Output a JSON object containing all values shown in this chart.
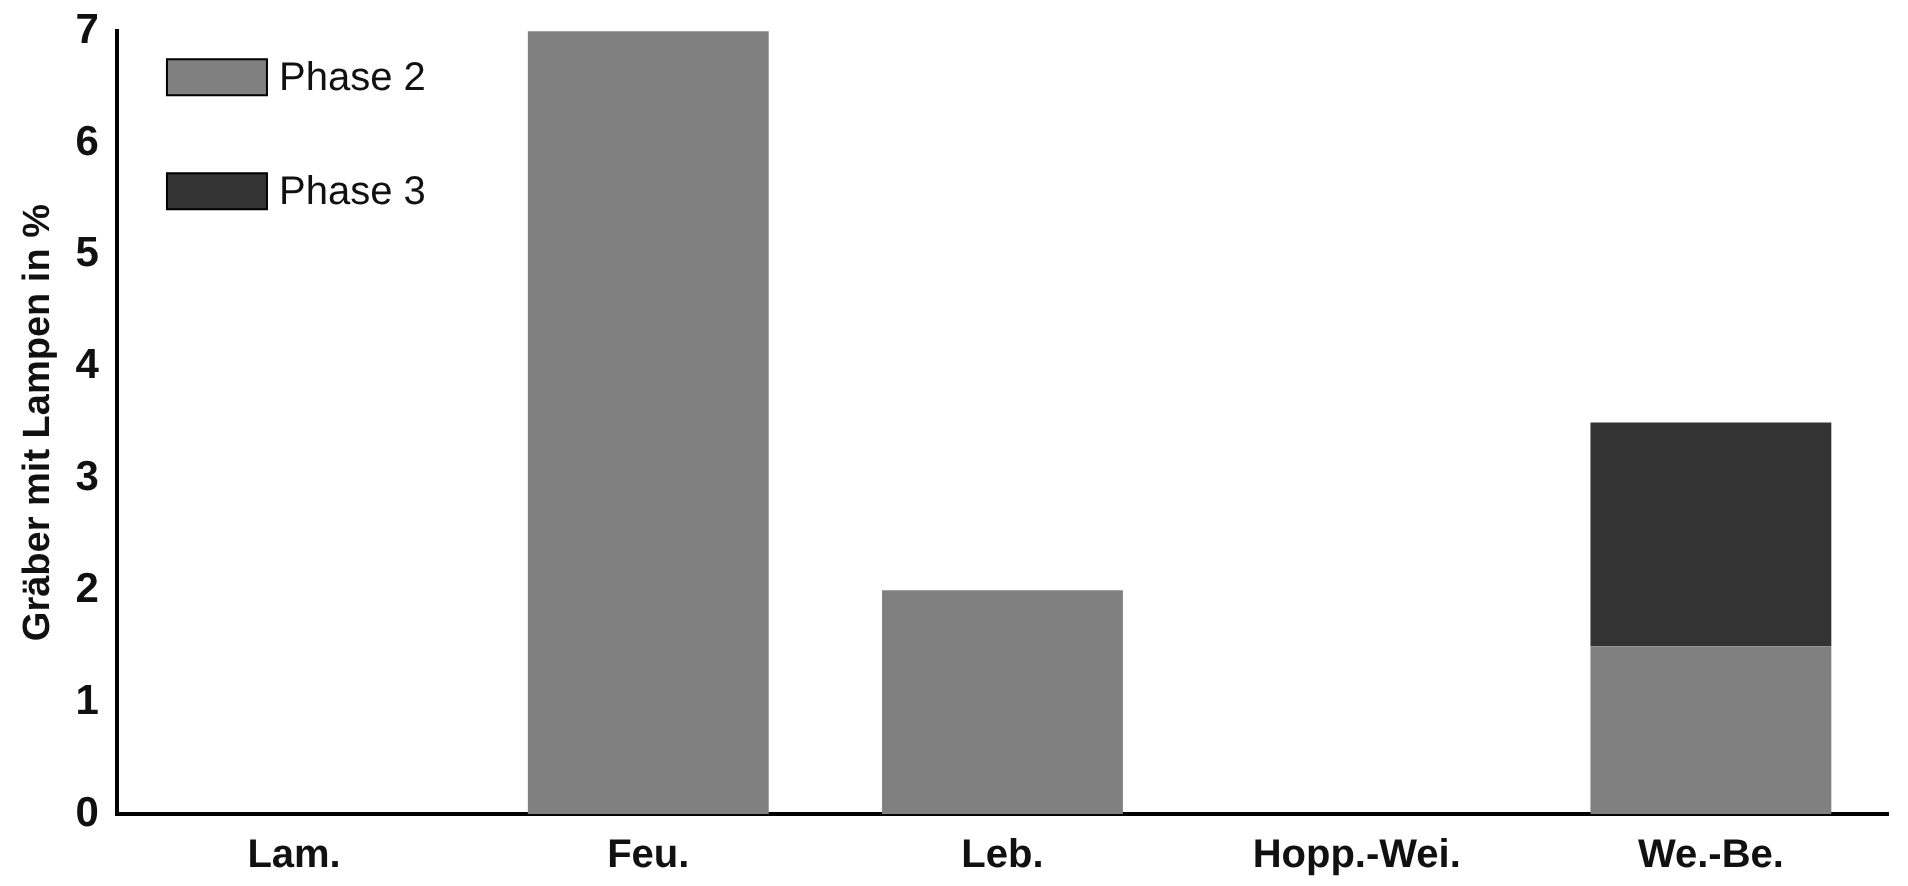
{
  "chart_data": {
    "type": "bar",
    "ylabel": "Gräber mit Lampen in %",
    "categories": [
      "Lam.",
      "Feu.",
      "Leb.",
      "Hopp.-Wei.",
      "We.-Be."
    ],
    "series": [
      {
        "name": "Phase 2",
        "color": "#808080",
        "values": [
          0,
          7,
          2,
          0,
          1.5
        ]
      },
      {
        "name": "Phase 3",
        "color": "#333333",
        "values": [
          null,
          null,
          null,
          null,
          2
        ]
      }
    ],
    "stacked": true,
    "ylim": [
      0,
      7
    ],
    "yticks": [
      0,
      1,
      2,
      3,
      4,
      5,
      6,
      7
    ],
    "grid": false,
    "legend": "top left"
  }
}
